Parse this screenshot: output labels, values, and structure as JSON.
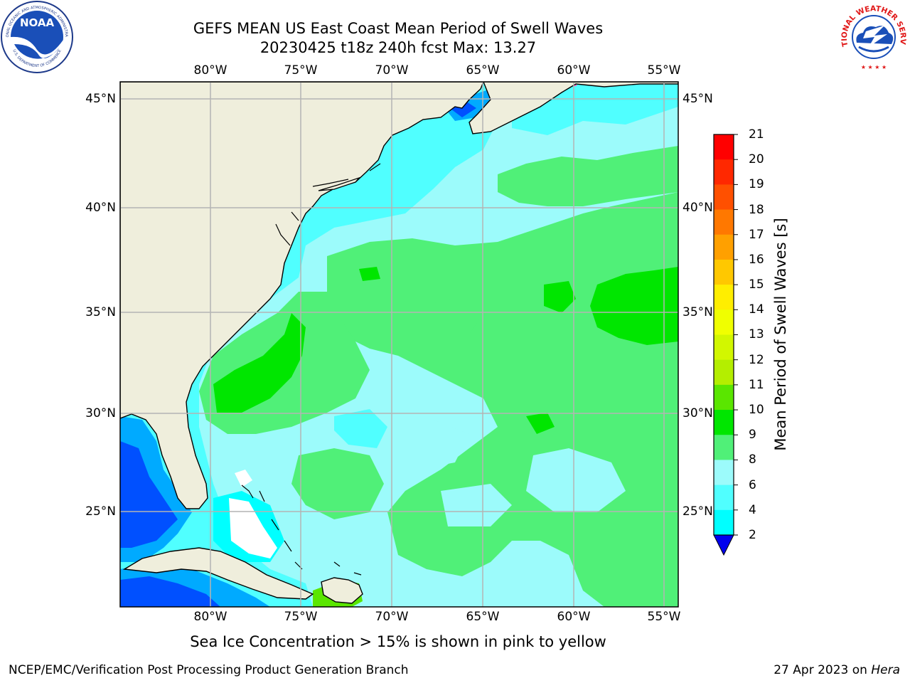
{
  "title": {
    "line1": "GEFS MEAN US East Coast Mean Period of Swell Waves",
    "line2": "20230425 t18z 240h fcst   Max: 13.27"
  },
  "map": {
    "lon_ticks": [
      "80°W",
      "75°W",
      "70°W",
      "65°W",
      "60°W",
      "55°W"
    ],
    "lat_ticks": [
      "45°N",
      "40°N",
      "35°N",
      "30°N",
      "25°N"
    ],
    "colors": {
      "land": "#efeedc",
      "frame": "#000000",
      "grid": "#b4b4b4"
    }
  },
  "colorbar": {
    "title": "Mean Period of Swell Waves [s]",
    "labels": [
      "21",
      "20",
      "19",
      "18",
      "17",
      "16",
      "15",
      "14",
      "13",
      "12",
      "11",
      "10",
      "9",
      "8",
      "6",
      "4",
      "2"
    ],
    "colors": [
      "#ff0000",
      "#ff2800",
      "#ff5000",
      "#ff7800",
      "#ffa000",
      "#ffc800",
      "#ffee00",
      "#f0ff00",
      "#d2f700",
      "#b4ee00",
      "#5ae600",
      "#00e600",
      "#50f078",
      "#9cfbfb",
      "#50ffff",
      "#00ffff",
      "#00aaff",
      "#0050ff"
    ],
    "under_color": "#0000ee"
  },
  "caption": "Sea Ice Concentration > 15% is shown in pink to yellow",
  "footer": {
    "left": "NCEP/EMC/Verification Post Processing Product Generation Branch",
    "date": "27 Apr 2023 on ",
    "host": "Hera"
  },
  "logos": {
    "noaa_text": "NOAA",
    "nws_text": "NATIONAL WEATHER SERVICE",
    "noaa_ring_text": "NATIONAL OCEANIC AND ATMOSPHERIC ADMINISTRATION",
    "noaa_ring_bottom": "U.S. DEPARTMENT OF COMMERCE"
  }
}
